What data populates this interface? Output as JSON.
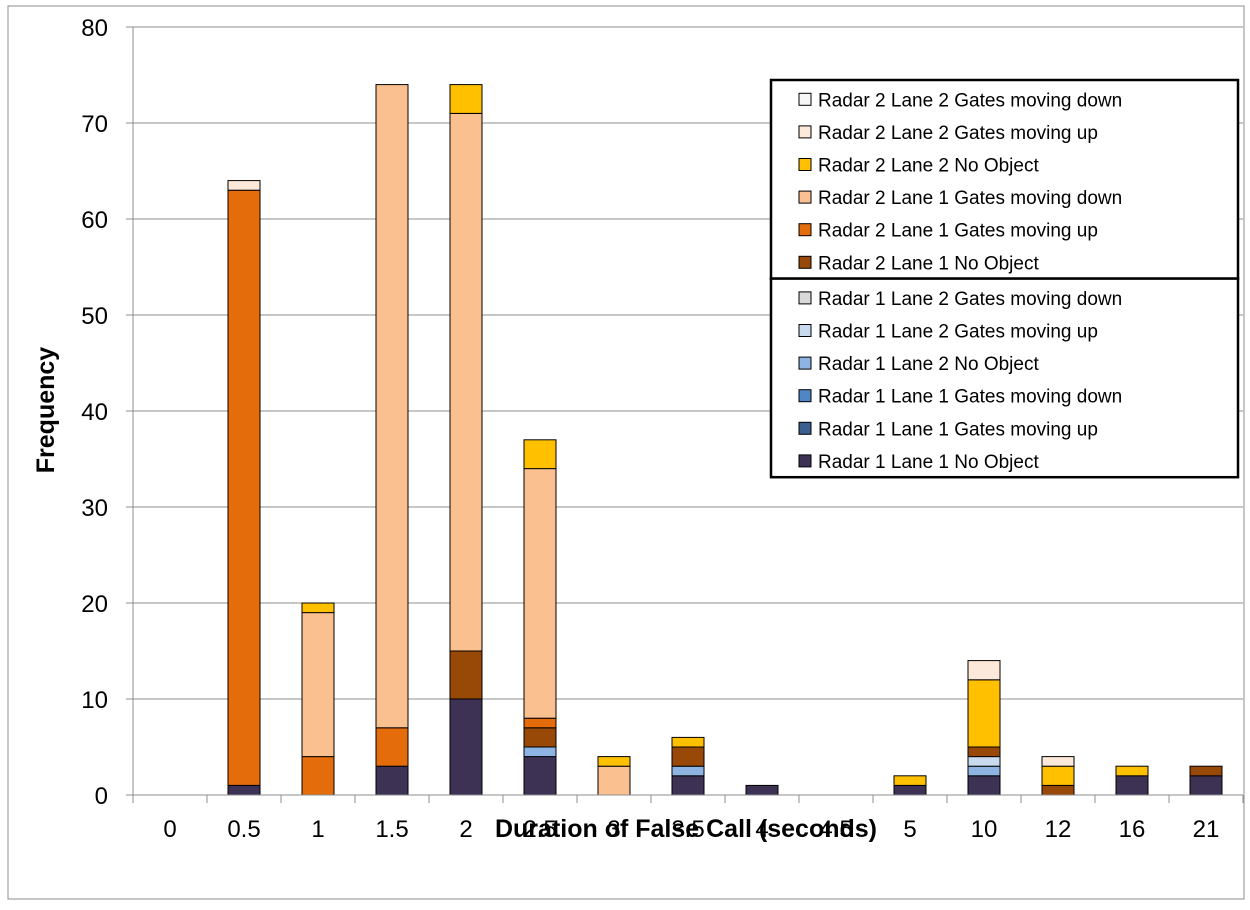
{
  "chart_data": {
    "type": "bar",
    "stacked": true,
    "title": "",
    "xlabel": "Duration of False Call (seconds)",
    "ylabel": "Frequency",
    "ylim": [
      0,
      80
    ],
    "yticks": [
      0,
      10,
      20,
      30,
      40,
      50,
      60,
      70,
      80
    ],
    "grid": true,
    "legend_placement": "top-right",
    "categories": [
      "0",
      "0.5",
      "1",
      "1.5",
      "2",
      "2.5",
      "3",
      "3.5",
      "4",
      "4.5",
      "5",
      "10",
      "12",
      "16",
      "21"
    ],
    "series": [
      {
        "name": "Radar 1 Lane 1 No Object",
        "color": "#3d3254",
        "values": [
          0,
          1,
          0,
          3,
          10,
          4,
          0,
          2,
          1,
          0,
          1,
          2,
          0,
          2,
          2
        ]
      },
      {
        "name": "Radar 1 Lane 1 Gates moving up",
        "color": "#3b5f8f",
        "values": [
          0,
          0,
          0,
          0,
          0,
          0,
          0,
          0,
          0,
          0,
          0,
          0,
          0,
          0,
          0
        ]
      },
      {
        "name": "Radar 1 Lane 1 Gates moving down",
        "color": "#4f86c6",
        "values": [
          0,
          0,
          0,
          0,
          0,
          0,
          0,
          0,
          0,
          0,
          0,
          0,
          0,
          0,
          0
        ]
      },
      {
        "name": "Radar 1 Lane 2 No Object",
        "color": "#8eb4e3",
        "values": [
          0,
          0,
          0,
          0,
          0,
          1,
          0,
          1,
          0,
          0,
          0,
          1,
          0,
          0,
          0
        ]
      },
      {
        "name": "Radar 1 Lane 2 Gates moving up",
        "color": "#c9d9ee",
        "values": [
          0,
          0,
          0,
          0,
          0,
          0,
          0,
          0,
          0,
          0,
          0,
          1,
          0,
          0,
          0
        ]
      },
      {
        "name": "Radar 1 Lane 2 Gates moving down",
        "color": "#d9d9d9",
        "values": [
          0,
          0,
          0,
          0,
          0,
          0,
          0,
          0,
          0,
          0,
          0,
          0,
          0,
          0,
          0
        ]
      },
      {
        "name": "Radar 2 Lane 1 No Object",
        "color": "#984807",
        "values": [
          0,
          0,
          0,
          0,
          5,
          2,
          0,
          2,
          0,
          0,
          0,
          1,
          1,
          0,
          1
        ]
      },
      {
        "name": "Radar 2 Lane 1 Gates moving up",
        "color": "#e46c0a",
        "values": [
          0,
          62,
          4,
          4,
          0,
          1,
          0,
          0,
          0,
          0,
          0,
          0,
          0,
          0,
          0
        ]
      },
      {
        "name": "Radar 2 Lane 1 Gates moving down",
        "color": "#fac090",
        "values": [
          0,
          0,
          15,
          67,
          56,
          26,
          3,
          0,
          0,
          0,
          0,
          0,
          0,
          0,
          0
        ]
      },
      {
        "name": "Radar 2 Lane 2 No Object",
        "color": "#ffc000",
        "values": [
          0,
          0,
          1,
          0,
          3,
          3,
          1,
          1,
          0,
          0,
          1,
          7,
          2,
          1,
          0
        ]
      },
      {
        "name": "Radar 2 Lane 2 Gates moving up",
        "color": "#fde9d9",
        "values": [
          0,
          1,
          0,
          0,
          0,
          0,
          0,
          0,
          0,
          0,
          0,
          2,
          1,
          0,
          0
        ]
      },
      {
        "name": "Radar 2 Lane 2 Gates moving down",
        "color": "#f7f7f7",
        "values": [
          0,
          0,
          0,
          0,
          0,
          0,
          0,
          0,
          0,
          0,
          0,
          0,
          0,
          0,
          0
        ]
      }
    ],
    "legend_order": [
      11,
      10,
      9,
      8,
      7,
      6,
      5,
      4,
      3,
      2,
      1,
      0
    ]
  }
}
